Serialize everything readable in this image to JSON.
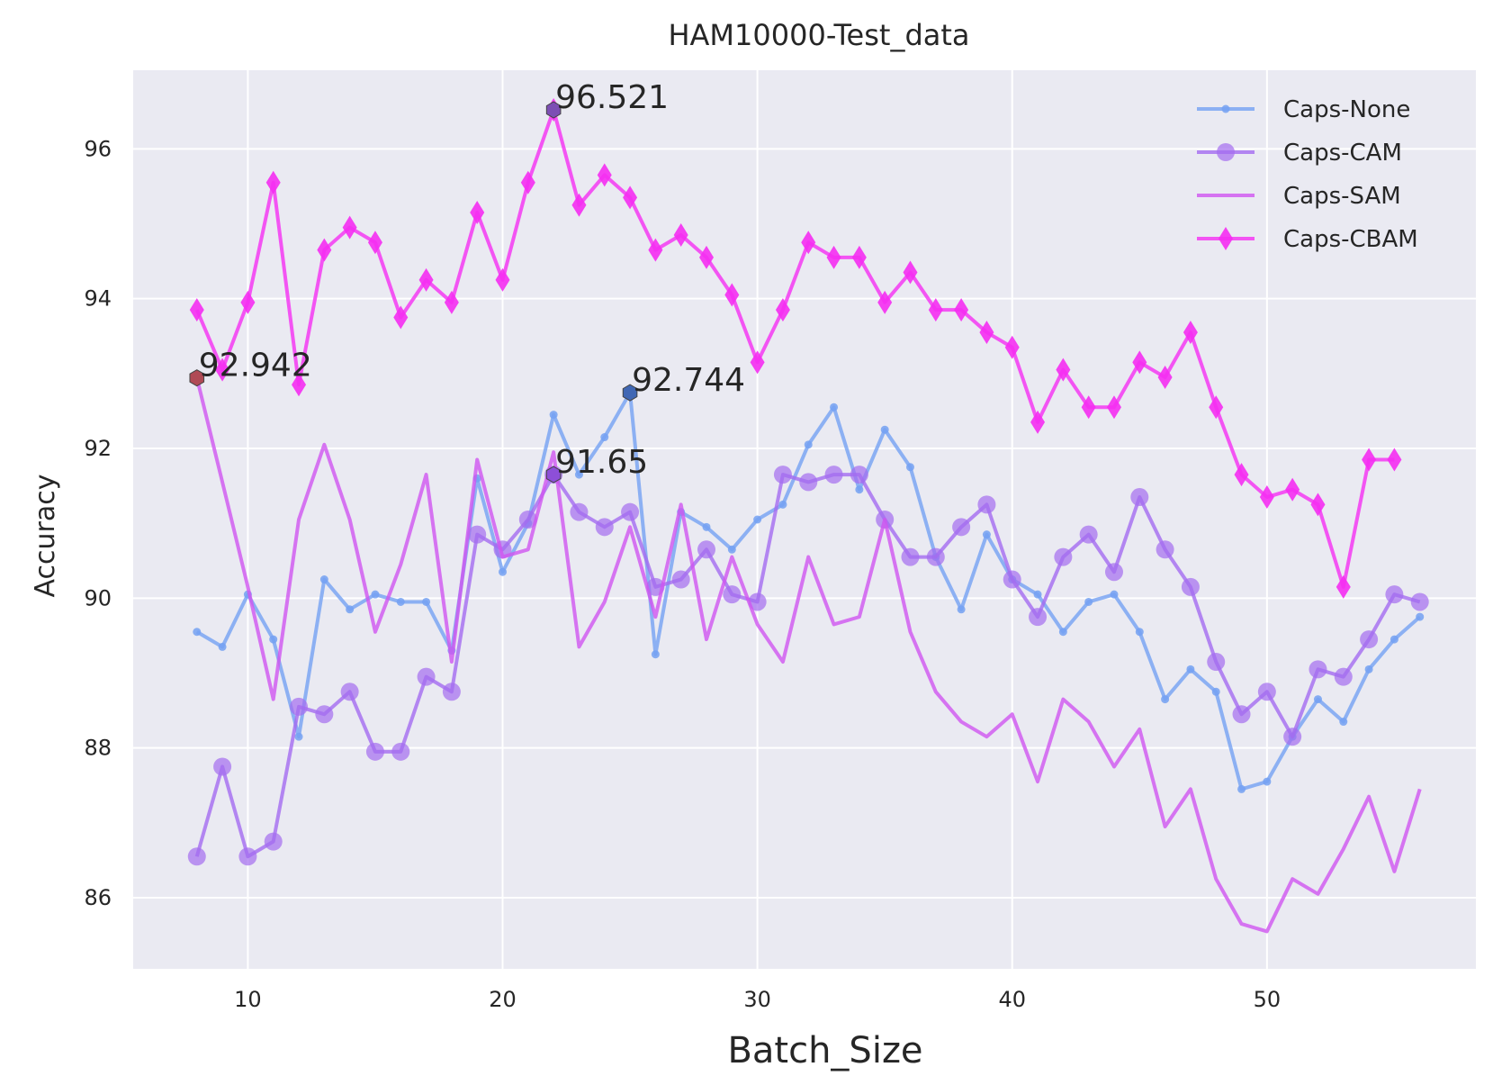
{
  "chart_data": {
    "type": "line",
    "title": "HAM10000-Test_data",
    "xlabel": "Batch_Size",
    "ylabel": "Accuracy",
    "xlim": [
      5.5,
      58.2
    ],
    "ylim": [
      85.05,
      97.05
    ],
    "xticks": [
      10,
      20,
      30,
      40,
      50
    ],
    "yticks": [
      86,
      88,
      90,
      92,
      94,
      96
    ],
    "grid": true,
    "legend_position": "top-right",
    "x": [
      8,
      9,
      10,
      11,
      12,
      13,
      14,
      15,
      16,
      17,
      18,
      19,
      20,
      21,
      22,
      23,
      24,
      25,
      26,
      27,
      28,
      29,
      30,
      31,
      32,
      33,
      34,
      35,
      36,
      37,
      38,
      39,
      40,
      41,
      42,
      43,
      44,
      45,
      46,
      47,
      48,
      49,
      50,
      51,
      52,
      53,
      54,
      55,
      56
    ],
    "series": [
      {
        "name": "Caps-None",
        "color": "#74a1f2",
        "marker": "point",
        "values": [
          89.55,
          89.35,
          90.05,
          89.45,
          88.15,
          90.25,
          89.85,
          90.05,
          89.95,
          89.95,
          89.3,
          91.6,
          90.35,
          91.0,
          92.45,
          91.65,
          92.15,
          92.744,
          89.25,
          91.15,
          90.95,
          90.65,
          91.05,
          91.25,
          92.05,
          92.55,
          91.45,
          92.25,
          91.75,
          90.55,
          89.85,
          90.85,
          90.25,
          90.05,
          89.55,
          89.95,
          90.05,
          89.55,
          88.65,
          89.05,
          88.75,
          87.45,
          87.55,
          88.15,
          88.65,
          88.35,
          89.05,
          89.45,
          89.75
        ]
      },
      {
        "name": "Caps-CAM",
        "color": "#a46cf0",
        "marker": "circle",
        "values": [
          86.55,
          87.75,
          86.55,
          86.75,
          88.55,
          88.45,
          88.75,
          87.95,
          87.95,
          88.95,
          88.75,
          90.85,
          90.65,
          91.05,
          91.65,
          91.15,
          90.95,
          91.15,
          90.15,
          90.25,
          90.65,
          90.05,
          89.95,
          91.65,
          91.55,
          91.65,
          91.65,
          91.05,
          90.55,
          90.55,
          90.95,
          91.25,
          90.25,
          89.75,
          90.55,
          90.85,
          90.35,
          91.35,
          90.65,
          90.15,
          89.15,
          88.45,
          88.75,
          88.15,
          89.05,
          88.95,
          89.45,
          90.05,
          89.95
        ]
      },
      {
        "name": "Caps-SAM",
        "color": "#cf55f0",
        "marker": "none",
        "values": [
          92.942,
          91.55,
          90.15,
          88.65,
          91.05,
          92.05,
          91.05,
          89.55,
          90.45,
          91.65,
          89.15,
          91.85,
          90.55,
          90.65,
          91.95,
          89.35,
          89.95,
          90.95,
          89.75,
          91.25,
          89.45,
          90.55,
          89.65,
          89.15,
          90.55,
          89.65,
          89.75,
          91.05,
          89.55,
          88.75,
          88.35,
          88.15,
          88.45,
          87.55,
          88.65,
          88.35,
          87.75,
          88.25,
          86.95,
          87.45,
          86.25,
          85.65,
          85.55,
          86.25,
          86.05,
          86.65,
          87.35,
          86.35,
          87.45
        ]
      },
      {
        "name": "Caps-CBAM",
        "color": "#f52ef2",
        "marker": "diamond",
        "values": [
          93.85,
          93.05,
          93.95,
          95.55,
          92.85,
          94.65,
          94.95,
          94.75,
          93.75,
          94.25,
          93.95,
          95.15,
          94.25,
          95.55,
          96.521,
          95.25,
          95.65,
          95.35,
          94.65,
          94.85,
          94.55,
          94.05,
          93.15,
          93.85,
          94.75,
          94.55,
          94.55,
          93.95,
          94.35,
          93.85,
          93.85,
          93.55,
          93.35,
          92.35,
          93.05,
          92.55,
          92.55,
          93.15,
          92.95,
          93.55,
          92.55,
          91.65,
          91.35,
          91.45,
          91.25,
          90.15,
          91.85,
          91.85,
          null
        ]
      }
    ],
    "annotations": [
      {
        "text": "96.521",
        "x": 22,
        "y": 96.521,
        "marker_color": "#7d4fb4"
      },
      {
        "text": "92.942",
        "x": 8,
        "y": 92.942,
        "marker_color": "#b04a55"
      },
      {
        "text": "92.744",
        "x": 25,
        "y": 92.744,
        "marker_color": "#4067b4"
      },
      {
        "text": "91.65",
        "x": 22,
        "y": 91.65,
        "marker_color": "#8d4fd8"
      }
    ]
  }
}
